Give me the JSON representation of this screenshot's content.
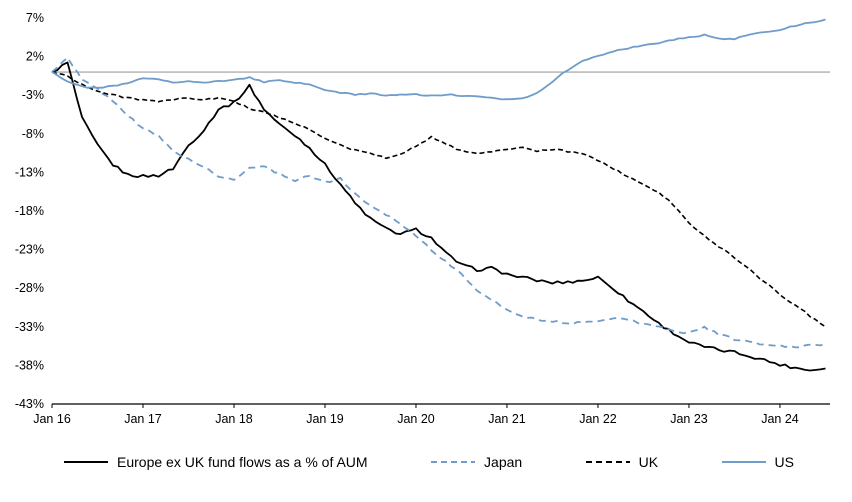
{
  "chart_data": {
    "type": "line",
    "title": "",
    "x_unit": "decimal_year",
    "xlim": [
      2016.0,
      2024.55
    ],
    "ylim": [
      -43,
      7
    ],
    "grid": false,
    "legend_position": "bottom",
    "zero_line": 0,
    "axis_color": "#000000",
    "zero_line_color": "#9d9d9d",
    "x_ticks": [
      {
        "label": "Jan 16",
        "value": 2016
      },
      {
        "label": "Jan 17",
        "value": 2017
      },
      {
        "label": "Jan 18",
        "value": 2018
      },
      {
        "label": "Jan 19",
        "value": 2019
      },
      {
        "label": "Jan 20",
        "value": 2020
      },
      {
        "label": "Jan 21",
        "value": 2021
      },
      {
        "label": "Jan 22",
        "value": 2022
      },
      {
        "label": "Jan 23",
        "value": 2023
      },
      {
        "label": "Jan 24",
        "value": 2024
      }
    ],
    "y_ticks": [
      {
        "label": "7%",
        "value": 7
      },
      {
        "label": "2%",
        "value": 2
      },
      {
        "label": "-3%",
        "value": -3
      },
      {
        "label": "-8%",
        "value": -8
      },
      {
        "label": "-13%",
        "value": -13
      },
      {
        "label": "-18%",
        "value": -18
      },
      {
        "label": "-23%",
        "value": -23
      },
      {
        "label": "-28%",
        "value": -28
      },
      {
        "label": "-33%",
        "value": -33
      },
      {
        "label": "-38%",
        "value": -38
      },
      {
        "label": "-43%",
        "value": -43
      }
    ],
    "x": [
      2016.0,
      2016.17,
      2016.33,
      2016.5,
      2016.67,
      2016.83,
      2017.0,
      2017.17,
      2017.33,
      2017.5,
      2017.67,
      2017.83,
      2018.0,
      2018.17,
      2018.33,
      2018.5,
      2018.67,
      2018.83,
      2019.0,
      2019.17,
      2019.33,
      2019.5,
      2019.67,
      2019.83,
      2020.0,
      2020.17,
      2020.33,
      2020.5,
      2020.67,
      2020.83,
      2021.0,
      2021.17,
      2021.33,
      2021.5,
      2021.67,
      2021.83,
      2022.0,
      2022.17,
      2022.33,
      2022.5,
      2022.67,
      2022.83,
      2023.0,
      2023.17,
      2023.33,
      2023.5,
      2023.67,
      2023.83,
      2024.0,
      2024.17,
      2024.33,
      2024.5
    ],
    "series": [
      {
        "name": "Europe ex UK fund flows as a % of AUM",
        "color": "#000000",
        "line_style": "solid",
        "values": [
          0.0,
          1.2,
          -6.0,
          -9.5,
          -12.0,
          -13.3,
          -13.5,
          -13.4,
          -12.5,
          -9.5,
          -7.5,
          -4.8,
          -4.0,
          -1.8,
          -4.8,
          -6.8,
          -8.2,
          -9.8,
          -12.0,
          -14.5,
          -17.0,
          -19.0,
          -20.3,
          -21.0,
          -20.4,
          -21.5,
          -23.5,
          -25.0,
          -25.6,
          -25.4,
          -26.2,
          -26.6,
          -27.0,
          -27.3,
          -27.2,
          -27.0,
          -26.6,
          -28.0,
          -29.6,
          -31.0,
          -32.6,
          -33.8,
          -35.0,
          -35.6,
          -36.0,
          -36.3,
          -36.8,
          -37.3,
          -37.9,
          -38.3,
          -38.6,
          -38.4
        ]
      },
      {
        "name": "Japan",
        "color": "#6f9cc9",
        "line_style": "dashed",
        "values": [
          0.0,
          1.8,
          -1.0,
          -2.2,
          -3.8,
          -5.5,
          -7.3,
          -8.3,
          -10.2,
          -11.3,
          -12.3,
          -13.6,
          -13.9,
          -12.4,
          -12.2,
          -13.2,
          -14.0,
          -13.4,
          -14.3,
          -13.8,
          -15.8,
          -17.3,
          -18.4,
          -19.6,
          -21.2,
          -23.0,
          -24.6,
          -26.2,
          -28.2,
          -29.6,
          -30.8,
          -31.6,
          -32.0,
          -32.3,
          -32.5,
          -32.5,
          -32.2,
          -31.8,
          -32.1,
          -32.6,
          -33.0,
          -33.5,
          -33.8,
          -33.1,
          -34.0,
          -34.6,
          -35.0,
          -35.3,
          -35.5,
          -35.6,
          -35.4,
          -35.2
        ]
      },
      {
        "name": "UK",
        "color": "#000000",
        "line_style": "dashed",
        "values": [
          0.0,
          -0.5,
          -1.6,
          -2.5,
          -3.0,
          -3.3,
          -3.6,
          -3.9,
          -3.6,
          -3.4,
          -3.6,
          -3.4,
          -3.7,
          -4.8,
          -5.1,
          -6.0,
          -6.6,
          -7.5,
          -8.6,
          -9.5,
          -10.1,
          -10.6,
          -11.1,
          -10.6,
          -9.6,
          -8.4,
          -9.4,
          -10.2,
          -10.5,
          -10.3,
          -10.0,
          -9.8,
          -10.3,
          -10.0,
          -10.3,
          -10.6,
          -11.4,
          -12.5,
          -13.6,
          -14.6,
          -15.6,
          -17.2,
          -19.6,
          -21.2,
          -22.6,
          -24.0,
          -25.6,
          -27.2,
          -28.8,
          -30.2,
          -31.6,
          -33.0
        ]
      },
      {
        "name": "US",
        "color": "#6f9cc9",
        "line_style": "solid",
        "values": [
          0.0,
          -1.2,
          -1.9,
          -2.1,
          -1.8,
          -1.5,
          -0.8,
          -0.9,
          -1.3,
          -1.2,
          -1.4,
          -1.2,
          -1.0,
          -0.7,
          -1.3,
          -1.1,
          -1.4,
          -1.6,
          -2.3,
          -2.7,
          -2.9,
          -2.8,
          -3.0,
          -2.9,
          -2.9,
          -3.1,
          -2.9,
          -3.1,
          -3.2,
          -3.4,
          -3.5,
          -3.4,
          -2.7,
          -1.2,
          0.3,
          1.4,
          2.1,
          2.7,
          3.1,
          3.4,
          3.8,
          4.2,
          4.5,
          4.8,
          4.3,
          4.3,
          4.8,
          5.2,
          5.5,
          6.0,
          6.4,
          6.8
        ]
      }
    ]
  }
}
